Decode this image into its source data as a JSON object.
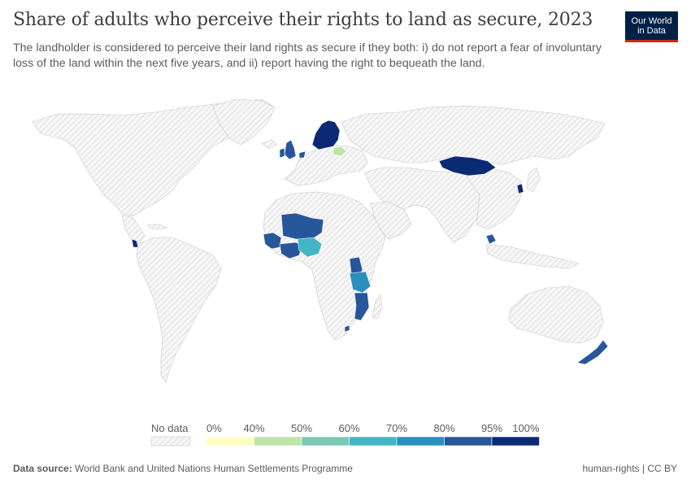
{
  "title": "Share of adults who perceive their rights to land as secure, 2023",
  "subtitle": "The landholder is considered to perceive their land rights as secure if they both: i) do not report a fear of involuntary loss of the land within the next five years, and ii) report having the right to bequeath the land.",
  "logo": {
    "line1": "Our World",
    "line2": "in Data"
  },
  "legend": {
    "no_data_label": "No data",
    "ticks": [
      "0%",
      "40%",
      "50%",
      "60%",
      "70%",
      "80%",
      "95%",
      "100%"
    ],
    "colors": [
      "#fefec2",
      "#bfe4a8",
      "#7ccab4",
      "#44b5c3",
      "#2b8fbe",
      "#27569a",
      "#0b2a73"
    ]
  },
  "map_data": {
    "type": "choropleth",
    "year": 2023,
    "shaded_countries": [
      "United Kingdom",
      "Ireland",
      "Netherlands",
      "Sweden",
      "Finland",
      "Norway",
      "Belarus",
      "Mongolia",
      "South Korea",
      "Cambodia",
      "Panama",
      "Mali",
      "Niger",
      "Burkina Faso",
      "Senegal",
      "Guinea",
      "Sierra Leone",
      "Liberia",
      "Côte d'Ivoire",
      "Ghana",
      "Togo",
      "Benin",
      "Nigeria",
      "Uganda",
      "Kenya",
      "Tanzania",
      "Malawi",
      "Mozambique",
      "Eswatini",
      "New Zealand"
    ]
  },
  "footer": {
    "source_label": "Data source:",
    "source_text": " World Bank and United Nations Human Settlements Programme",
    "right": "human-rights | CC BY"
  }
}
